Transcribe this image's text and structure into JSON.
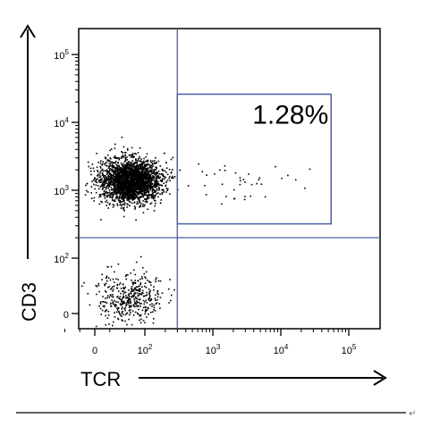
{
  "chart_data": {
    "type": "scatter",
    "xlabel": "TCR",
    "ylabel": "CD3",
    "x_scale": "biexponential",
    "y_scale": "biexponential",
    "x_ticks": [
      {
        "value": 0,
        "base": "0",
        "exp": ""
      },
      {
        "value": 100,
        "base": "10",
        "exp": "2"
      },
      {
        "value": 1000,
        "base": "10",
        "exp": "3"
      },
      {
        "value": 10000,
        "base": "10",
        "exp": "4"
      },
      {
        "value": 100000,
        "base": "10",
        "exp": "5"
      }
    ],
    "y_ticks": [
      {
        "value": 0,
        "base": "0",
        "exp": ""
      },
      {
        "value": 100,
        "base": "10",
        "exp": "2"
      },
      {
        "value": 1000,
        "base": "10",
        "exp": "3"
      },
      {
        "value": 10000,
        "base": "10",
        "exp": "4"
      },
      {
        "value": 100000,
        "base": "10",
        "exp": "5"
      }
    ],
    "quadrant_lines": {
      "x": 300,
      "y": 200
    },
    "gate": {
      "x_range": [
        300,
        55000
      ],
      "y_range": [
        320,
        26000
      ],
      "label": "1.28%"
    },
    "populations": [
      {
        "name": "",
        "center_x": 70,
        "center_y": 1400,
        "count": 2600,
        "spread_x": 0.22,
        "spread_y": 0.16
      },
      {
        "name": "",
        "center_x": 70,
        "center_y": 30,
        "count": 420,
        "spread_x": 0.25,
        "spread_y": 0.35
      },
      {
        "name": "",
        "center_x": 2000,
        "center_y": 1300,
        "count": 38,
        "spread_x": 0.35,
        "spread_y": 0.12
      }
    ],
    "grid": false,
    "legend": "none"
  },
  "colors": {
    "dots": "#000000",
    "gate_lines": "#4a5fa8",
    "axis": "#000000"
  },
  "footer_mark": "↵"
}
